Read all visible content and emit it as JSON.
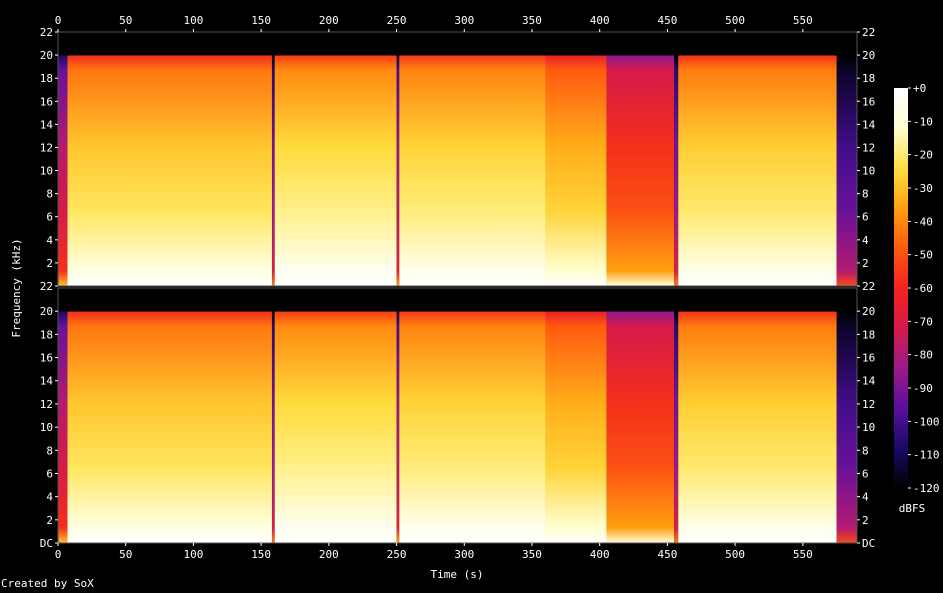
{
  "footer": {
    "credit": "Created by SoX"
  },
  "chart_data": {
    "type": "heatmap",
    "title": "",
    "xlabel": "Time (s)",
    "ylabel": "Frequency (kHz)",
    "xlim": [
      0,
      590
    ],
    "x_ticks": [
      0,
      50,
      100,
      150,
      200,
      250,
      300,
      350,
      400,
      450,
      500,
      550
    ],
    "channels": [
      {
        "y_ticks": [
          "DC",
          "2",
          "4",
          "6",
          "8",
          "10",
          "12",
          "14",
          "16",
          "18",
          "20",
          "22"
        ],
        "ylim_khz": [
          0,
          22
        ]
      },
      {
        "y_ticks": [
          "DC",
          "2",
          "4",
          "6",
          "8",
          "10",
          "12",
          "14",
          "16",
          "18",
          "20",
          "22"
        ],
        "ylim_khz": [
          0,
          22
        ]
      }
    ],
    "top_channel_top_label": "22",
    "colorbar": {
      "label": "dBFS",
      "ticks": [
        "+0",
        "-10",
        "-20",
        "-30",
        "-40",
        "-50",
        "-60",
        "-70",
        "-80",
        "-90",
        "-100",
        "-110",
        "-120"
      ],
      "range_db": [
        -120,
        0
      ],
      "colors": [
        "#000000",
        "#1a0a66",
        "#5a0f9e",
        "#9b1a8a",
        "#d61a4a",
        "#f2241e",
        "#ff5a10",
        "#ffa010",
        "#ffe040",
        "#ffffd0",
        "#ffffff"
      ]
    },
    "segments": [
      {
        "start": 0,
        "end": 7,
        "level": 0.4
      },
      {
        "start": 7,
        "end": 158,
        "level": 0.82
      },
      {
        "start": 158,
        "end": 160,
        "level": 0.3
      },
      {
        "start": 160,
        "end": 250,
        "level": 0.85
      },
      {
        "start": 250,
        "end": 252,
        "level": 0.35
      },
      {
        "start": 252,
        "end": 360,
        "level": 0.84
      },
      {
        "start": 360,
        "end": 405,
        "level": 0.78
      },
      {
        "start": 405,
        "end": 455,
        "level": 0.58
      },
      {
        "start": 455,
        "end": 458,
        "level": 0.3
      },
      {
        "start": 458,
        "end": 575,
        "level": 0.83
      },
      {
        "start": 575,
        "end": 590,
        "level": 0.22
      }
    ]
  }
}
